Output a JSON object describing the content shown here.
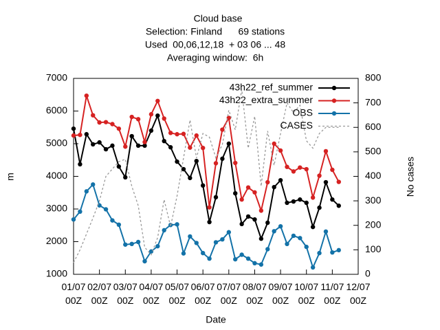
{
  "chart_data": {
    "type": "line",
    "title": "Cloud base",
    "subtitle": [
      "Selection: Finland      69 stations",
      "Used  00,06,12,18  + 03 06 ... 48",
      "Averaging window:  6h"
    ],
    "xlabel": "Date",
    "ylabel": "m",
    "y2label": "No cases",
    "x": [
      "01/07 00Z",
      "01/07 06Z",
      "01/07 12Z",
      "01/07 18Z",
      "02/07 00Z",
      "02/07 06Z",
      "02/07 12Z",
      "02/07 18Z",
      "03/07 00Z",
      "03/07 06Z",
      "03/07 12Z",
      "03/07 18Z",
      "04/07 00Z",
      "04/07 06Z",
      "04/07 12Z",
      "04/07 18Z",
      "05/07 00Z",
      "05/07 06Z",
      "05/07 12Z",
      "05/07 18Z",
      "06/07 00Z",
      "06/07 06Z",
      "06/07 12Z",
      "06/07 18Z",
      "07/07 00Z",
      "07/07 06Z",
      "07/07 12Z",
      "07/07 18Z",
      "08/07 00Z",
      "08/07 06Z",
      "08/07 12Z",
      "08/07 18Z",
      "09/07 00Z",
      "09/07 06Z",
      "09/07 12Z",
      "09/07 18Z",
      "10/07 00Z",
      "10/07 06Z",
      "10/07 12Z",
      "10/07 18Z",
      "11/07 00Z",
      "11/07 06Z"
    ],
    "xlim": [
      "01/07 00Z",
      "12/07 00Z"
    ],
    "xticks": [
      "01/07 00Z",
      "02/07 00Z",
      "03/07 00Z",
      "04/07 00Z",
      "05/07 00Z",
      "06/07 00Z",
      "07/07 00Z",
      "08/07 00Z",
      "09/07 00Z",
      "10/07 00Z",
      "11/07 00Z",
      "12/07 00Z"
    ],
    "ylim": [
      1000,
      7000
    ],
    "yticks": [
      1000,
      2000,
      3000,
      4000,
      5000,
      6000,
      7000
    ],
    "y2lim": [
      0,
      800
    ],
    "y2ticks": [
      0,
      100,
      200,
      300,
      400,
      500,
      600,
      700,
      800
    ],
    "legend": "top-right",
    "series": [
      {
        "name": "43h22_ref_summer",
        "color": "#000000",
        "marker": true,
        "values": [
          5460,
          4370,
          5290,
          4980,
          5040,
          4830,
          4940,
          4300,
          3970,
          5230,
          4940,
          4940,
          5400,
          5860,
          5080,
          4890,
          4450,
          4220,
          3950,
          4470,
          3720,
          2600,
          3360,
          4540,
          5000,
          3480,
          2540,
          2770,
          2680,
          2090,
          2580,
          3670,
          3880,
          3190,
          3230,
          3290,
          3190,
          2450,
          3040,
          3820,
          3290,
          3100
        ]
      },
      {
        "name": "43h22_extra_summer",
        "color": "#d62222",
        "marker": true,
        "values": [
          5250,
          5270,
          6470,
          5870,
          5650,
          5660,
          5600,
          5460,
          4910,
          5820,
          5750,
          5050,
          5900,
          6310,
          5770,
          5330,
          5290,
          5300,
          4880,
          5250,
          4870,
          3050,
          4400,
          5430,
          5790,
          4410,
          3290,
          3660,
          3510,
          2950,
          3820,
          5000,
          4790,
          4290,
          4150,
          4270,
          4220,
          3350,
          4020,
          4770,
          4200,
          3830
        ]
      },
      {
        "name": "OBS",
        "color": "#1372a8",
        "marker": true,
        "values": [
          2680,
          2920,
          3540,
          3750,
          3110,
          2990,
          2650,
          2520,
          1910,
          1930,
          1990,
          1400,
          1700,
          1860,
          2350,
          2510,
          2530,
          1640,
          2160,
          1960,
          1650,
          1480,
          1980,
          2070,
          2290,
          1460,
          1600,
          1480,
          1340,
          1300,
          1770,
          2320,
          2470,
          1930,
          2180,
          2110,
          1840,
          1210,
          1650,
          2310,
          1670,
          1740
        ]
      },
      {
        "name": "CASES",
        "color": "#999999",
        "dashed": true,
        "axis": "y2",
        "values": [
          48,
          100,
          165,
          230,
          300,
          400,
          430,
          460,
          470,
          360,
          280,
          110,
          80,
          150,
          305,
          195,
          320,
          475,
          630,
          475,
          575,
          560,
          475,
          530,
          670,
          590,
          755,
          515,
          645,
          360,
          585,
          445,
          575,
          700,
          660,
          690,
          545,
          515,
          575,
          600,
          600,
          600
        ]
      }
    ]
  }
}
